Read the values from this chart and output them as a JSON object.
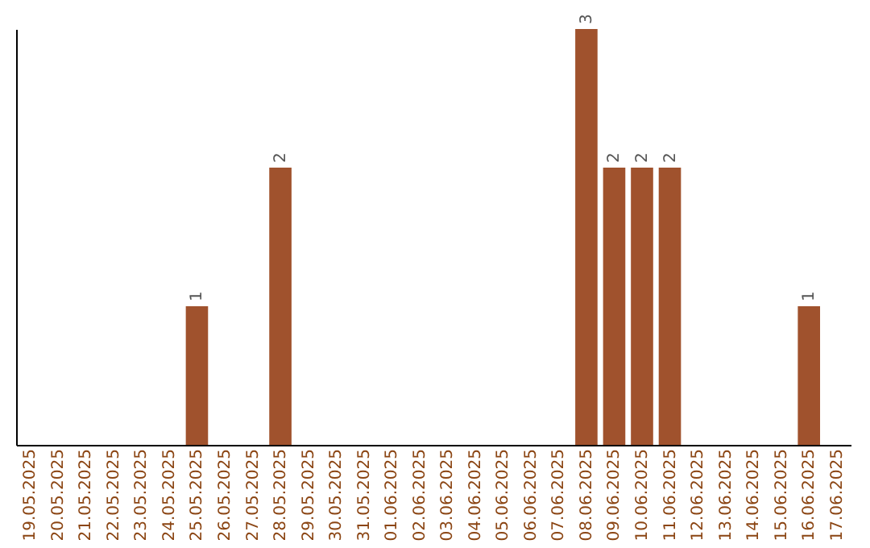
{
  "chart_data": {
    "type": "bar",
    "categories": [
      "19.05.2025",
      "20.05.2025",
      "21.05.2025",
      "22.05.2025",
      "23.05.2025",
      "24.05.2025",
      "25.05.2025",
      "26.05.2025",
      "27.05.2025",
      "28.05.2025",
      "29.05.2025",
      "30.05.2025",
      "31.05.2025",
      "01.06.2025",
      "02.06.2025",
      "03.06.2025",
      "04.06.2025",
      "05.06.2025",
      "06.06.2025",
      "07.06.2025",
      "08.06.2025",
      "09.06.2025",
      "10.06.2025",
      "11.06.2025",
      "12.06.2025",
      "13.06.2025",
      "14.06.2025",
      "15.06.2025",
      "16.06.2025",
      "17.06.2025"
    ],
    "values": [
      0,
      0,
      0,
      0,
      0,
      0,
      1,
      0,
      0,
      2,
      0,
      0,
      0,
      0,
      0,
      0,
      0,
      0,
      0,
      0,
      3,
      2,
      2,
      2,
      0,
      0,
      0,
      0,
      1,
      0
    ],
    "value_labels": [
      null,
      null,
      null,
      null,
      null,
      null,
      "1",
      null,
      null,
      "2",
      null,
      null,
      null,
      null,
      null,
      null,
      null,
      null,
      null,
      null,
      "3",
      "2",
      "2",
      "2",
      null,
      null,
      null,
      null,
      "1",
      null
    ],
    "color": "#a0522d",
    "tick_labels": "x",
    "grid": false
  }
}
